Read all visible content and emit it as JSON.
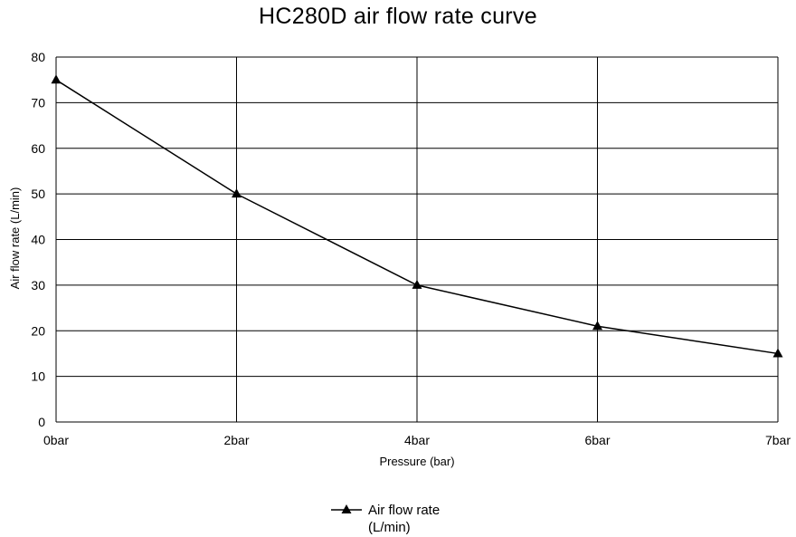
{
  "chart_data": {
    "type": "line",
    "title": "HC280D air flow rate curve",
    "xlabel": "Pressure (bar)",
    "ylabel": "Air flow rate (L/min)",
    "categories": [
      "0bar",
      "2bar",
      "4bar",
      "6bar",
      "7bar"
    ],
    "ylim": [
      0,
      80
    ],
    "yticks": [
      "0",
      "10",
      "20",
      "30",
      "40",
      "50",
      "60",
      "70",
      "80"
    ],
    "grid": true,
    "legend_position": "bottom",
    "series": [
      {
        "name": "Air flow rate (L/min)",
        "name_lines": [
          "Air flow rate",
          "(L/min)"
        ],
        "marker": "triangle",
        "color": "#000000",
        "values": [
          75,
          50,
          30,
          21,
          15
        ]
      }
    ]
  }
}
